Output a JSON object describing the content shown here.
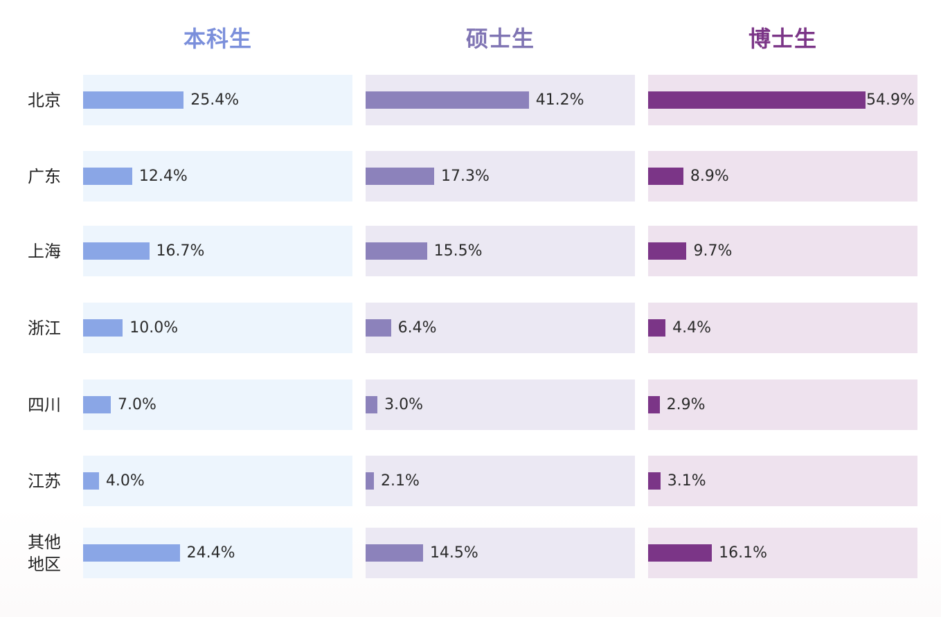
{
  "chart_data": {
    "type": "bar",
    "orientation": "horizontal",
    "layout": "small-multiples",
    "categories": [
      "北京",
      "广东",
      "上海",
      "浙江",
      "四川",
      "江苏",
      "其他\n地区"
    ],
    "series": [
      {
        "name": "本科生",
        "color": "#8aa6e6",
        "header_color": "#7b8fdb",
        "panel_color": "#edf5fd",
        "values": [
          25.4,
          12.4,
          16.7,
          10.0,
          7.0,
          4.0,
          24.4
        ],
        "labels": [
          "25.4%",
          "12.4%",
          "16.7%",
          "10.0%",
          "7.0%",
          "4.0%",
          "24.4%"
        ]
      },
      {
        "name": "硕士生",
        "color": "#8c82bb",
        "header_color": "#7f74b3",
        "panel_color": "#ebe8f3",
        "values": [
          41.2,
          17.3,
          15.5,
          6.4,
          3.0,
          2.1,
          14.5
        ],
        "labels": [
          "41.2%",
          "17.3%",
          "15.5%",
          "6.4%",
          "3.0%",
          "2.1%",
          "14.5%"
        ]
      },
      {
        "name": "博士生",
        "color": "#7b3587",
        "header_color": "#7b3587",
        "panel_color": "#eee2ee",
        "values": [
          54.9,
          8.9,
          9.7,
          4.4,
          2.9,
          3.1,
          16.1
        ],
        "labels": [
          "54.9%",
          "8.9%",
          "9.7%",
          "4.4%",
          "2.9%",
          "3.1%",
          "16.1%"
        ]
      }
    ],
    "xlim": [
      0,
      68
    ],
    "grid": false,
    "legend": "none"
  }
}
